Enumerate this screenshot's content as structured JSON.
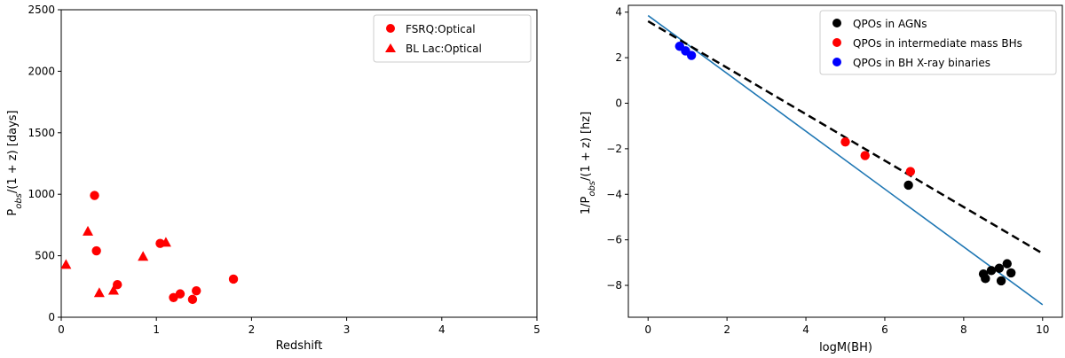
{
  "chart_data": [
    {
      "type": "scatter",
      "xlabel": "Redshift",
      "ylabel": "P_obs/(1+z) [days]",
      "ylabel_parts": {
        "prefix": "P",
        "sub": "obs",
        "suffix": "/(1 + z) [days]"
      },
      "xlim": [
        0,
        5
      ],
      "ylim": [
        0,
        2500
      ],
      "xticks": [
        "0",
        "1",
        "2",
        "3",
        "4",
        "5"
      ],
      "yticks": [
        "0",
        "500",
        "1000",
        "1500",
        "2000",
        "2500"
      ],
      "legend_position": "top-right",
      "series": [
        {
          "name": "FSRQ:Optical",
          "marker": "circle",
          "color": "#ff0000",
          "points": [
            {
              "x": 0.35,
              "y": 990
            },
            {
              "x": 0.37,
              "y": 540
            },
            {
              "x": 0.59,
              "y": 265
            },
            {
              "x": 1.04,
              "y": 600
            },
            {
              "x": 1.18,
              "y": 160
            },
            {
              "x": 1.25,
              "y": 190
            },
            {
              "x": 1.38,
              "y": 145
            },
            {
              "x": 1.42,
              "y": 215
            },
            {
              "x": 1.81,
              "y": 310
            }
          ]
        },
        {
          "name": "BL Lac:Optical",
          "marker": "triangle",
          "color": "#ff0000",
          "points": [
            {
              "x": 0.05,
              "y": 430
            },
            {
              "x": 0.28,
              "y": 700
            },
            {
              "x": 0.4,
              "y": 200
            },
            {
              "x": 0.55,
              "y": 220
            },
            {
              "x": 0.86,
              "y": 495
            },
            {
              "x": 1.1,
              "y": 610
            }
          ]
        }
      ]
    },
    {
      "type": "scatter",
      "xlabel": "logM(BH)",
      "ylabel": "1/P_obs/(1+z) [hz]",
      "ylabel_parts": {
        "prefix": "1/P",
        "sub": "obs",
        "suffix": "/(1 + z) [hz]"
      },
      "xlim": [
        -0.5,
        10.5
      ],
      "ylim": [
        -9.4,
        4.3
      ],
      "xticks": [
        "0",
        "2",
        "4",
        "6",
        "8",
        "10"
      ],
      "yticks": [
        "−8",
        "−6",
        "−4",
        "−2",
        "0",
        "2",
        "4"
      ],
      "legend_position": "top-right",
      "series": [
        {
          "name": "QPOs in AGNs",
          "marker": "circle",
          "color": "#000000",
          "points": [
            {
              "x": 6.6,
              "y": -3.6
            },
            {
              "x": 8.5,
              "y": -7.5
            },
            {
              "x": 8.55,
              "y": -7.7
            },
            {
              "x": 8.7,
              "y": -7.35
            },
            {
              "x": 8.9,
              "y": -7.25
            },
            {
              "x": 8.95,
              "y": -7.8
            },
            {
              "x": 9.1,
              "y": -7.05
            },
            {
              "x": 9.2,
              "y": -7.45
            }
          ]
        },
        {
          "name": "QPOs in intermediate mass BHs",
          "marker": "circle",
          "color": "#ff0000",
          "points": [
            {
              "x": 5.0,
              "y": -1.7
            },
            {
              "x": 5.5,
              "y": -2.3
            },
            {
              "x": 6.65,
              "y": -3.0
            }
          ]
        },
        {
          "name": "QPOs in BH X-ray binaries",
          "marker": "circle",
          "color": "#0000ff",
          "points": [
            {
              "x": 0.8,
              "y": 2.5
            },
            {
              "x": 0.95,
              "y": 2.3
            },
            {
              "x": 1.1,
              "y": 2.1
            }
          ]
        }
      ],
      "lines": [
        {
          "style": "solid",
          "color": "#1f77b4",
          "from": [
            0,
            3.85
          ],
          "to": [
            10,
            -8.85
          ]
        },
        {
          "style": "dashed",
          "color": "#000000",
          "from": [
            0,
            3.6
          ],
          "to": [
            10,
            -6.6
          ]
        }
      ]
    }
  ]
}
